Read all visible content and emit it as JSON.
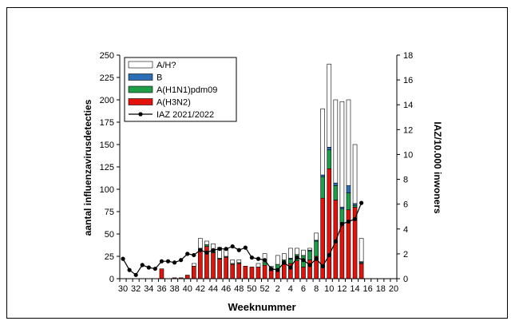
{
  "chart_data": {
    "type": "bar",
    "stacked": true,
    "xlabel": "Weeknummer",
    "ylabel": "aantal influenzavirusdetecties",
    "y2label": "IAZ/10.000 inwoners",
    "ylim": [
      0,
      250
    ],
    "y2lim": [
      0,
      18
    ],
    "yticks": [
      0,
      25,
      50,
      75,
      100,
      125,
      150,
      175,
      200,
      225,
      250
    ],
    "y2ticks": [
      0,
      2,
      4,
      6,
      8,
      10,
      12,
      14,
      16,
      18
    ],
    "grid": false,
    "legend_position": "top-left",
    "categories": [
      "30",
      "31",
      "32",
      "33",
      "34",
      "35",
      "36",
      "37",
      "38",
      "39",
      "40",
      "41",
      "42",
      "43",
      "44",
      "45",
      "46",
      "47",
      "48",
      "49",
      "50",
      "51",
      "52",
      "1",
      "2",
      "3",
      "4",
      "5",
      "6",
      "7",
      "8",
      "9",
      "10",
      "11",
      "12",
      "13",
      "14",
      "15",
      "16",
      "17",
      "18",
      "19",
      "20"
    ],
    "tick_labels": [
      "30",
      "32",
      "34",
      "36",
      "38",
      "40",
      "42",
      "44",
      "46",
      "48",
      "50",
      "52",
      "2",
      "4",
      "6",
      "8",
      "10",
      "12",
      "14",
      "16",
      "18",
      "20"
    ],
    "series": [
      {
        "name": "A(H3N2)",
        "kind": "bar",
        "color": "#e3120b",
        "values": [
          0,
          0,
          0,
          0,
          0,
          0,
          11,
          0,
          1,
          1,
          4,
          14,
          32,
          36,
          29,
          22,
          24,
          16,
          17,
          14,
          13,
          13,
          15,
          9,
          11,
          16,
          17,
          20,
          13,
          21,
          25,
          90,
          123,
          88,
          63,
          77,
          80,
          17,
          0,
          0,
          0,
          0,
          0
        ]
      },
      {
        "name": "A(H1N1)pdm09",
        "kind": "bar",
        "color": "#1f9e4a",
        "values": [
          0,
          0,
          0,
          0,
          0,
          0,
          0,
          0,
          0,
          0,
          0,
          0,
          2,
          2,
          1,
          1,
          1,
          1,
          1,
          0,
          0,
          0,
          3,
          1,
          5,
          5,
          5,
          7,
          13,
          10,
          17,
          24,
          21,
          16,
          15,
          19,
          2,
          1,
          0,
          0,
          0,
          0,
          0
        ]
      },
      {
        "name": "B",
        "kind": "bar",
        "color": "#2a6fb6",
        "values": [
          0,
          0,
          0,
          0,
          0,
          0,
          0,
          0,
          0,
          0,
          0,
          0,
          0,
          0,
          0,
          0,
          0,
          0,
          0,
          0,
          0,
          0,
          0,
          0,
          0,
          0,
          1,
          0,
          0,
          1,
          1,
          2,
          3,
          3,
          2,
          8,
          2,
          1,
          0,
          0,
          0,
          0,
          0
        ]
      },
      {
        "name": "A/H?",
        "kind": "bar",
        "color": "#ffffff",
        "values": [
          0,
          0,
          0,
          0,
          0,
          0,
          0,
          0,
          0,
          0,
          0,
          3,
          11,
          4,
          9,
          12,
          8,
          4,
          3,
          0,
          0,
          4,
          10,
          4,
          10,
          7,
          11,
          7,
          6,
          2,
          8,
          74,
          93,
          93,
          118,
          96,
          66,
          26,
          0,
          0,
          0,
          0,
          0
        ]
      },
      {
        "name": "IAZ 2021/2022",
        "kind": "line",
        "axis": "right",
        "color": "#000000",
        "values": [
          1.6,
          0.7,
          0.3,
          1.1,
          0.9,
          0.8,
          1.4,
          1.4,
          1.3,
          1.5,
          2.0,
          1.9,
          2.3,
          2.1,
          2.3,
          2.4,
          2.4,
          2.6,
          2.3,
          2.5,
          1.7,
          1.6,
          1.5,
          0.8,
          0.7,
          1.3,
          0.9,
          1.7,
          1.5,
          1.1,
          1.6,
          1.0,
          1.9,
          3.0,
          4.4,
          4.6,
          4.8,
          6.1,
          null,
          null,
          null,
          null,
          null
        ]
      }
    ],
    "legend_order": [
      "A/H?",
      "B",
      "A(H1N1)pdm09",
      "A(H3N2)",
      "IAZ 2021/2022"
    ]
  }
}
